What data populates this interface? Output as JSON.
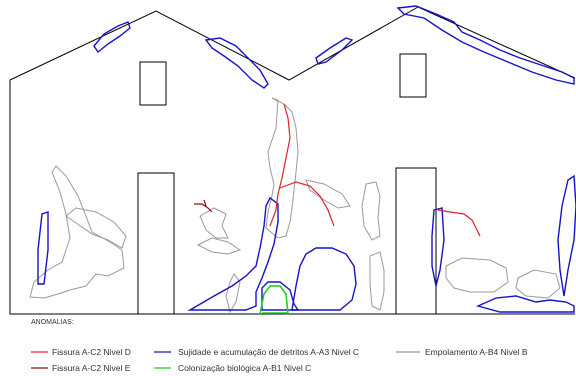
{
  "legend": {
    "heading": "ANOMALIAS:",
    "items": [
      {
        "label": "Fissura A-C2 Nivel D",
        "color": "#e0202a"
      },
      {
        "label": "Sujidade e acumulação de detritos A-A3 Nivel C",
        "color": "#1414c8"
      },
      {
        "label": "Empolamento A-B4 Nivel B",
        "color": "#9a9a9a"
      },
      {
        "label": "Fissura A-C2 Nivel E",
        "color": "#8a1010"
      },
      {
        "label": "Colonização biológica A-B1 Nivel C",
        "color": "#22cc22"
      }
    ]
  },
  "colors": {
    "outline": "#000000",
    "crack_d": "#e0202a",
    "crack_e": "#8a1010",
    "dirt": "#1414c8",
    "blister": "#9a9a9a",
    "bio": "#22cc22"
  }
}
